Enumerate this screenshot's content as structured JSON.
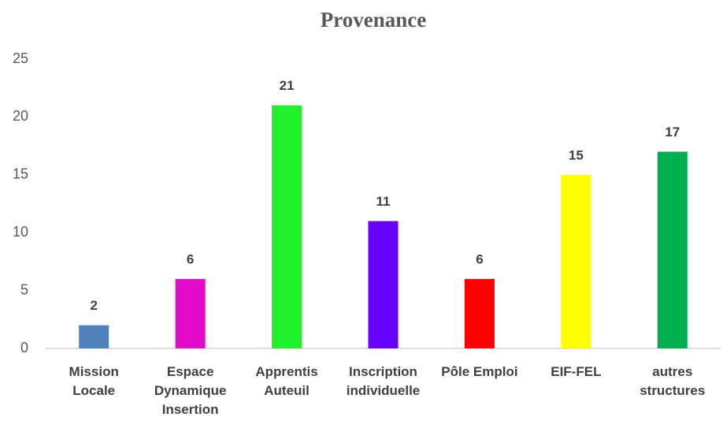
{
  "chart_data": {
    "type": "bar",
    "title": "Provenance",
    "categories": [
      "Mission Locale",
      "Espace Dynamique Insertion",
      "Apprentis Auteuil",
      "Inscription individuelle",
      "Pôle Emploi",
      "EIF-FEL",
      "autres structures"
    ],
    "values": [
      2,
      6,
      21,
      11,
      6,
      15,
      17
    ],
    "colors": [
      "#4f81bd",
      "#e20cc8",
      "#22f02a",
      "#6600ff",
      "#ff0000",
      "#ffff00",
      "#00b050"
    ],
    "ylim": [
      0,
      25
    ],
    "yticks": [
      0,
      5,
      10,
      15,
      20,
      25
    ],
    "grid": false
  }
}
